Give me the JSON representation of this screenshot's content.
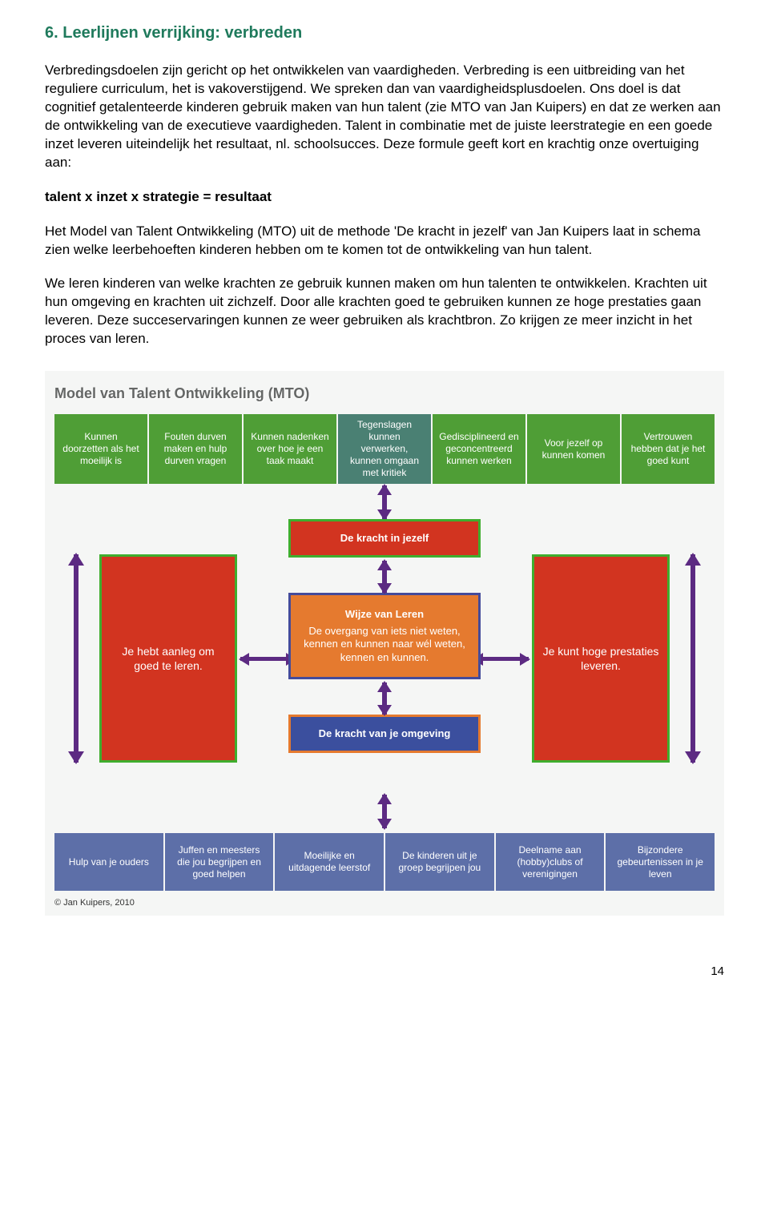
{
  "heading": {
    "text": "6.  Leerlijnen verrijking: verbreden",
    "color": "#1f7a5c"
  },
  "paragraphs": {
    "p1": "Verbredingsdoelen zijn gericht op het ontwikkelen van vaardigheden. Verbreding is een uitbreiding van het reguliere curriculum, het is vakoverstijgend. We spreken dan van vaardigheidsplusdoelen. Ons doel is dat cognitief getalenteerde kinderen gebruik maken van hun talent (zie MTO van Jan Kuipers) en dat ze werken aan de ontwikkeling van de executieve vaardigheden. Talent in combinatie met de juiste leerstrategie en een goede inzet leveren uiteindelijk het resultaat, nl. schoolsucces. Deze formule geeft kort en krachtig onze overtuiging aan:",
    "formula": "talent x inzet x strategie = resultaat",
    "p2": "Het Model van Talent Ontwikkeling (MTO) uit de methode 'De kracht in jezelf' van Jan Kuipers laat in schema zien welke leerbehoeften kinderen hebben om te komen tot de ontwikkeling van hun talent.",
    "p3": "We leren kinderen van welke krachten ze gebruik kunnen maken om hun talenten te ontwikkelen. Krachten uit hun omgeving en krachten uit zichzelf. Door alle krachten goed te gebruiken kunnen ze hoge prestaties gaan leveren. Deze succeservaringen kunnen ze weer gebruiken als krachtbron. Zo krijgen ze meer inzicht in het proces van leren."
  },
  "diagram": {
    "type": "flowchart",
    "title": "Model van Talent Ontwikkeling (MTO)",
    "background_color": "#f5f6f5",
    "colors": {
      "top_green": "#4f9e36",
      "top_teal": "#4a8073",
      "red": "#d23420",
      "red_border": "#3fae2e",
      "orange": "#e57a2f",
      "orange_border": "#444b9b",
      "blue": "#3b4f9e",
      "blue_border": "#e57a2f",
      "bottom": "#5d6fa8",
      "arrow_purple": "#5c2a82"
    },
    "top_row": [
      "Kunnen doorzetten als het moeilijk is",
      "Fouten durven maken en hulp durven vragen",
      "Kunnen nadenken over hoe je een taak maakt",
      "Tegenslagen kunnen verwerken, kunnen omgaan met kritiek",
      "Gedisciplineerd en geconcentreerd kunnen werken",
      "Voor jezelf op kunnen komen",
      "Vertrouwen hebben dat je het goed kunt"
    ],
    "bottom_row": [
      "Hulp van je ouders",
      "Juffen en meesters die jou begrijpen en goed helpen",
      "Moeilijke en uitdagende leerstof",
      "De kinderen uit je groep begrijpen jou",
      "Deelname aan (hobby)clubs of verenigingen",
      "Bijzondere gebeurtenissen in je leven"
    ],
    "side_left": "Je hebt aanleg om goed te leren.",
    "side_right": "Je kunt hoge prestaties leveren.",
    "center_top": "De kracht in jezelf",
    "center_mid_title": "Wijze van Leren",
    "center_mid_body": "De overgang van iets niet weten, kennen en kunnen naar wél weten, kennen en kunnen.",
    "center_bottom": "De kracht van je omgeving",
    "copyright": "© Jan Kuipers, 2010"
  },
  "page_number": "14"
}
